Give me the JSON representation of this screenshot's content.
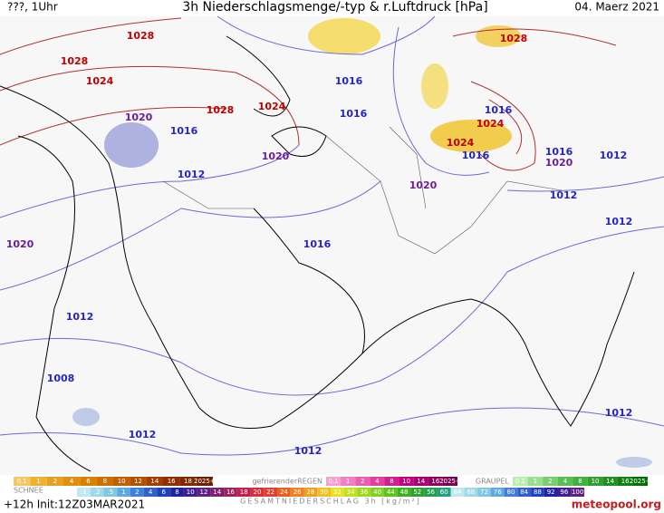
{
  "header": {
    "run": "???, 1Uhr",
    "title": "3h Niederschlagsmenge/-typ & r.Luftdruck [hPa]",
    "date": "04. Maerz 2021"
  },
  "isobar_labels": [
    {
      "text": "1028",
      "color": "#c00000"
    },
    {
      "text": "1028",
      "color": "#c00000"
    },
    {
      "text": "1024",
      "color": "#c00000"
    },
    {
      "text": "1020",
      "color": "#6a1e9c"
    },
    {
      "text": "1016",
      "color": "#2424c8"
    },
    {
      "text": "1028",
      "color": "#c00000"
    },
    {
      "text": "1024",
      "color": "#c00000"
    },
    {
      "text": "1016",
      "color": "#2424c8"
    },
    {
      "text": "1016",
      "color": "#2424c8"
    },
    {
      "text": "1020",
      "color": "#6a1e9c"
    },
    {
      "text": "1012",
      "color": "#2424c8"
    },
    {
      "text": "1016",
      "color": "#2424c8"
    },
    {
      "text": "1020",
      "color": "#6a1e9c"
    },
    {
      "text": "1012",
      "color": "#2424c8"
    },
    {
      "text": "1008",
      "color": "#2424c8"
    },
    {
      "text": "1012",
      "color": "#2424c8"
    },
    {
      "text": "1012",
      "color": "#2424c8"
    },
    {
      "text": "1028",
      "color": "#c00000"
    },
    {
      "text": "1024",
      "color": "#c00000"
    },
    {
      "text": "1024",
      "color": "#c00000"
    },
    {
      "text": "1016",
      "color": "#2424c8"
    },
    {
      "text": "1016",
      "color": "#2424c8"
    },
    {
      "text": "1016",
      "color": "#2424c8"
    },
    {
      "text": "1020",
      "color": "#6a1e9c"
    },
    {
      "text": "1012",
      "color": "#2424c8"
    },
    {
      "text": "1012",
      "color": "#2424c8"
    },
    {
      "text": "1020",
      "color": "#6a1e9c"
    },
    {
      "text": "1012",
      "color": "#2424c8"
    },
    {
      "text": "1012",
      "color": "#2424c8"
    }
  ],
  "legend": {
    "snow": {
      "title": "SCHNEE",
      "steps": [
        "0.1",
        "1",
        "2",
        "4",
        "6",
        "8",
        "10",
        "12",
        "14",
        "16",
        "18",
        "2025+"
      ]
    },
    "freezing_rain": {
      "title": "gefrierenderREGEN",
      "steps": [
        "0.1",
        "1",
        "2",
        "4",
        "8",
        "10",
        "14",
        "16",
        "2025+"
      ]
    },
    "graupel": {
      "title": "GRAUPEL",
      "steps": [
        "0.1",
        "1",
        "2",
        "4",
        "8",
        "10",
        "14",
        "16",
        "2025+"
      ]
    },
    "total": {
      "title": "GESAMTNIEDERSCHLAG 3h [kg/m²]",
      "steps": [
        ".1",
        ".2",
        ".5",
        "1",
        "2",
        "4",
        "6",
        "8",
        "10",
        "12",
        "14",
        "16",
        "18",
        "20",
        "22",
        "24",
        "26",
        "28",
        "30",
        "32",
        "34",
        "36",
        "40",
        "44",
        "48",
        "52",
        "56",
        "60",
        "64",
        "68",
        "72",
        "76",
        "80",
        "84",
        "88",
        "92",
        "96",
        "100"
      ]
    }
  },
  "footer": {
    "init": "+12h Init:12Z03MAR2021",
    "brand": "meteopool.org"
  }
}
